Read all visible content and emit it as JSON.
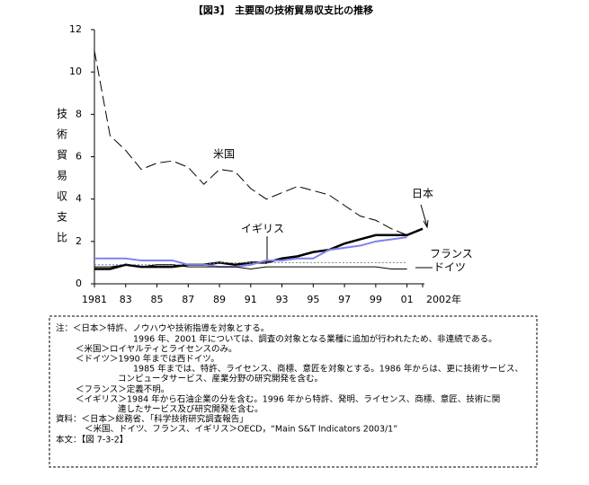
{
  "chart_data": {
    "type": "line",
    "title": "【図3】　主要国の技術貿易収支比の推移",
    "y_label": "技術貿易収支比",
    "x": [
      1981,
      1982,
      1983,
      1984,
      1985,
      1986,
      1987,
      1988,
      1989,
      1990,
      1991,
      1992,
      1993,
      1994,
      1995,
      1996,
      1997,
      1998,
      1999,
      2000,
      2001,
      2002
    ],
    "xlim": [
      1981,
      2002
    ],
    "xticks": [
      1981,
      {
        "value": 1983,
        "label": "83"
      },
      {
        "value": 1985,
        "label": "85"
      },
      {
        "value": 1987,
        "label": "87"
      },
      {
        "value": 1989,
        "label": "89"
      },
      {
        "value": 1991,
        "label": "91"
      },
      {
        "value": 1993,
        "label": "93"
      },
      {
        "value": 1995,
        "label": "95"
      },
      {
        "value": 1997,
        "label": "97"
      },
      {
        "value": 1999,
        "label": "99"
      },
      {
        "value": 2001,
        "label": "01"
      },
      {
        "value": 2002,
        "label": "2002年"
      }
    ],
    "ylim": [
      0,
      12
    ],
    "yticks": [
      0,
      2,
      4,
      6,
      8,
      10,
      12
    ],
    "grid": false,
    "series": [
      {
        "name": "米国",
        "color": "#000000",
        "style": "dashed",
        "values": [
          11.0,
          7.0,
          6.3,
          5.4,
          5.7,
          5.8,
          5.5,
          4.7,
          5.4,
          5.3,
          4.5,
          4.0,
          4.3,
          4.6,
          4.4,
          4.2,
          3.7,
          3.2,
          3.0,
          2.6,
          2.3,
          null
        ]
      },
      {
        "name": "日本",
        "color": "#000000",
        "style": "thick",
        "values": [
          0.7,
          0.7,
          0.9,
          0.8,
          0.8,
          0.8,
          0.9,
          0.9,
          1.0,
          0.9,
          1.0,
          1.0,
          1.2,
          1.3,
          1.5,
          1.6,
          1.9,
          2.1,
          2.3,
          2.3,
          2.3,
          2.6
        ]
      },
      {
        "name": "イギリス",
        "color": "#8080f0",
        "style": "medium",
        "values": [
          1.2,
          1.2,
          1.2,
          1.1,
          1.1,
          1.1,
          0.9,
          0.9,
          0.8,
          0.8,
          0.9,
          1.1,
          1.1,
          1.2,
          1.2,
          1.6,
          1.7,
          1.8,
          2.0,
          2.1,
          2.2,
          null
        ]
      },
      {
        "name": "フランス",
        "color": "#808080",
        "style": "dotted",
        "values": [
          0.9,
          0.9,
          0.9,
          0.9,
          0.9,
          0.9,
          0.9,
          0.9,
          1.0,
          1.0,
          1.0,
          1.0,
          1.0,
          1.0,
          1.0,
          1.0,
          1.0,
          1.0,
          1.0,
          1.0,
          1.0,
          null
        ]
      },
      {
        "name": "ドイツ",
        "color": "#000000",
        "style": "thin",
        "values": [
          0.8,
          0.8,
          0.9,
          0.8,
          0.9,
          0.9,
          0.8,
          0.8,
          0.8,
          0.8,
          0.7,
          0.8,
          0.8,
          0.8,
          0.8,
          0.8,
          0.8,
          0.8,
          0.8,
          0.7,
          0.7,
          null
        ]
      }
    ],
    "notes": [
      "注：＜日本＞特許、ノウハウや技術指導を対象とする。",
      "1996 年、2001 年については、調査の対象となる業種に追加が行われたため、非連続である。",
      "＜米国＞ロイヤルティとライセンスのみ。",
      "＜ドイツ＞1990 年までは西ドイツ。",
      "1985 年までは、特許、ライセンス、商標、意匠を対象とする。1986 年からは、更に技術サービス、",
      "コンピュータサービス、産業分野の研究開発を含む。",
      "＜フランス＞定義不明。",
      "＜イギリス＞1984 年から石油企業の分を含む。1996 年から特許、発明、ライセンス、商標、意匠、技術に関",
      "連したサービス及び研究開発を含む。",
      "資料：＜日本＞総務省、「科学技術研究調査報告」",
      "＜米国、ドイツ、フランス、イギリス＞OECD，“Main S&T Indicators 2003/1”",
      "本文：【図 7-3-2】"
    ]
  }
}
